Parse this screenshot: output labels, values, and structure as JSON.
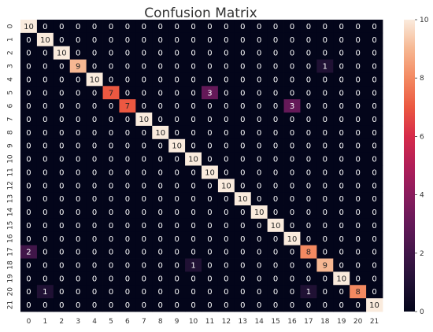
{
  "chart_data": {
    "type": "heatmap",
    "title": "Confusion Matrix",
    "xlabel": "",
    "ylabel": "",
    "x_labels": [
      "0",
      "1",
      "2",
      "3",
      "4",
      "5",
      "6",
      "7",
      "8",
      "9",
      "10",
      "11",
      "12",
      "13",
      "14",
      "15",
      "16",
      "17",
      "18",
      "19",
      "20",
      "21"
    ],
    "y_labels": [
      "0",
      "1",
      "2",
      "3",
      "4",
      "5",
      "6",
      "7",
      "8",
      "9",
      "10",
      "11",
      "12",
      "13",
      "14",
      "15",
      "16",
      "17",
      "18",
      "19",
      "20",
      "21"
    ],
    "values": [
      [
        10,
        0,
        0,
        0,
        0,
        0,
        0,
        0,
        0,
        0,
        0,
        0,
        0,
        0,
        0,
        0,
        0,
        0,
        0,
        0,
        0,
        0
      ],
      [
        0,
        10,
        0,
        0,
        0,
        0,
        0,
        0,
        0,
        0,
        0,
        0,
        0,
        0,
        0,
        0,
        0,
        0,
        0,
        0,
        0,
        0
      ],
      [
        0,
        0,
        10,
        0,
        0,
        0,
        0,
        0,
        0,
        0,
        0,
        0,
        0,
        0,
        0,
        0,
        0,
        0,
        0,
        0,
        0,
        0
      ],
      [
        0,
        0,
        0,
        9,
        0,
        0,
        0,
        0,
        0,
        0,
        0,
        0,
        0,
        0,
        0,
        0,
        0,
        0,
        1,
        0,
        0,
        0
      ],
      [
        0,
        0,
        0,
        0,
        10,
        0,
        0,
        0,
        0,
        0,
        0,
        0,
        0,
        0,
        0,
        0,
        0,
        0,
        0,
        0,
        0,
        0
      ],
      [
        0,
        0,
        0,
        0,
        0,
        7,
        0,
        0,
        0,
        0,
        0,
        3,
        0,
        0,
        0,
        0,
        0,
        0,
        0,
        0,
        0,
        0
      ],
      [
        0,
        0,
        0,
        0,
        0,
        0,
        7,
        0,
        0,
        0,
        0,
        0,
        0,
        0,
        0,
        0,
        3,
        0,
        0,
        0,
        0,
        0
      ],
      [
        0,
        0,
        0,
        0,
        0,
        0,
        0,
        10,
        0,
        0,
        0,
        0,
        0,
        0,
        0,
        0,
        0,
        0,
        0,
        0,
        0,
        0
      ],
      [
        0,
        0,
        0,
        0,
        0,
        0,
        0,
        0,
        10,
        0,
        0,
        0,
        0,
        0,
        0,
        0,
        0,
        0,
        0,
        0,
        0,
        0
      ],
      [
        0,
        0,
        0,
        0,
        0,
        0,
        0,
        0,
        0,
        10,
        0,
        0,
        0,
        0,
        0,
        0,
        0,
        0,
        0,
        0,
        0,
        0
      ],
      [
        0,
        0,
        0,
        0,
        0,
        0,
        0,
        0,
        0,
        0,
        10,
        0,
        0,
        0,
        0,
        0,
        0,
        0,
        0,
        0,
        0,
        0
      ],
      [
        0,
        0,
        0,
        0,
        0,
        0,
        0,
        0,
        0,
        0,
        0,
        10,
        0,
        0,
        0,
        0,
        0,
        0,
        0,
        0,
        0,
        0
      ],
      [
        0,
        0,
        0,
        0,
        0,
        0,
        0,
        0,
        0,
        0,
        0,
        0,
        10,
        0,
        0,
        0,
        0,
        0,
        0,
        0,
        0,
        0
      ],
      [
        0,
        0,
        0,
        0,
        0,
        0,
        0,
        0,
        0,
        0,
        0,
        0,
        0,
        10,
        0,
        0,
        0,
        0,
        0,
        0,
        0,
        0
      ],
      [
        0,
        0,
        0,
        0,
        0,
        0,
        0,
        0,
        0,
        0,
        0,
        0,
        0,
        0,
        10,
        0,
        0,
        0,
        0,
        0,
        0,
        0
      ],
      [
        0,
        0,
        0,
        0,
        0,
        0,
        0,
        0,
        0,
        0,
        0,
        0,
        0,
        0,
        0,
        10,
        0,
        0,
        0,
        0,
        0,
        0
      ],
      [
        0,
        0,
        0,
        0,
        0,
        0,
        0,
        0,
        0,
        0,
        0,
        0,
        0,
        0,
        0,
        0,
        10,
        0,
        0,
        0,
        0,
        0
      ],
      [
        2,
        0,
        0,
        0,
        0,
        0,
        0,
        0,
        0,
        0,
        0,
        0,
        0,
        0,
        0,
        0,
        0,
        8,
        0,
        0,
        0,
        0
      ],
      [
        0,
        0,
        0,
        0,
        0,
        0,
        0,
        0,
        0,
        0,
        1,
        0,
        0,
        0,
        0,
        0,
        0,
        0,
        9,
        0,
        0,
        0
      ],
      [
        0,
        0,
        0,
        0,
        0,
        0,
        0,
        0,
        0,
        0,
        0,
        0,
        0,
        0,
        0,
        0,
        0,
        0,
        0,
        10,
        0,
        0
      ],
      [
        0,
        1,
        0,
        0,
        0,
        0,
        0,
        0,
        0,
        0,
        0,
        0,
        0,
        0,
        0,
        0,
        0,
        1,
        0,
        0,
        8,
        0
      ],
      [
        0,
        0,
        0,
        0,
        0,
        0,
        0,
        0,
        0,
        0,
        0,
        0,
        0,
        0,
        0,
        0,
        0,
        0,
        0,
        0,
        0,
        10
      ]
    ],
    "colorbar": {
      "min": 0,
      "max": 10,
      "ticks": [
        0,
        2,
        4,
        6,
        8,
        10
      ]
    },
    "colormap": "rocket",
    "grid": false,
    "legend": "colorbar-right"
  }
}
